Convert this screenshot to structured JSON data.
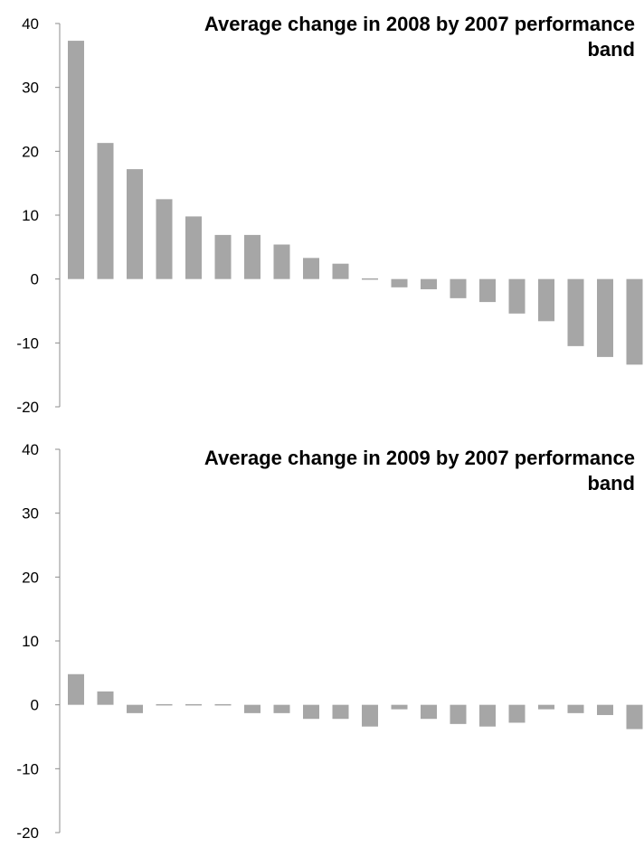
{
  "chart_data": [
    {
      "type": "bar",
      "title_lines": [
        "Average change in 2008 by 2007 performance",
        "band"
      ],
      "ylim": [
        -20,
        40
      ],
      "yticks": [
        40,
        30,
        20,
        10,
        0,
        -10,
        -20
      ],
      "ytick_labels": [
        "40",
        "30",
        "20",
        "10",
        "0",
        "-10",
        "-20"
      ],
      "values": [
        37.3,
        21.3,
        17.2,
        12.5,
        9.8,
        6.9,
        6.9,
        5.4,
        3.3,
        2.4,
        0.1,
        -1.3,
        -1.6,
        -3.0,
        -3.6,
        -5.4,
        -6.6,
        -10.5,
        -12.2,
        -13.4
      ],
      "bar_color": "#a6a6a6",
      "grid": false
    },
    {
      "type": "bar",
      "title_lines": [
        "Average change in 2009 by 2007 performance",
        "band"
      ],
      "ylim": [
        -20,
        40
      ],
      "yticks": [
        40,
        30,
        20,
        10,
        0,
        -10,
        -20
      ],
      "ytick_labels": [
        "40",
        "30",
        "20",
        "10",
        "0",
        "-10",
        "-20"
      ],
      "values": [
        4.8,
        2.1,
        -1.3,
        -0.2,
        0.2,
        -0.2,
        -1.3,
        -1.3,
        -2.2,
        -2.2,
        -3.4,
        -0.7,
        -2.2,
        -3.0,
        -3.4,
        -2.8,
        -0.7,
        -1.3,
        -1.6,
        -3.8
      ],
      "bar_color": "#a6a6a6",
      "grid": false
    }
  ]
}
